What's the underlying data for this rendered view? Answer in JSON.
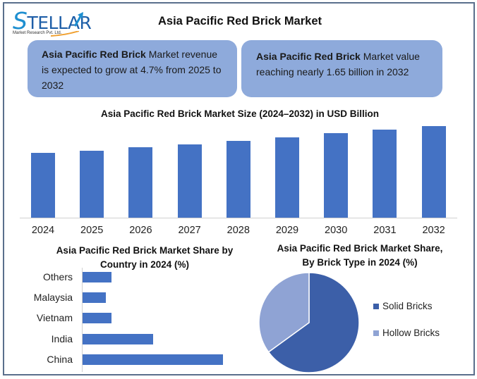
{
  "header": {
    "logo_name": "STELLAR",
    "logo_subtitle": "Market Research Pvt. Ltd.",
    "title": "Asia Pacific Red Brick Market"
  },
  "cards": [
    {
      "bold": "Asia Pacific Red Brick",
      "text": " Market revenue is expected to grow at 4.7% from 2025 to 2032"
    },
    {
      "bold": "Asia Pacific Red Brick",
      "text": " Market value reaching nearly 1.65 billion in 2032"
    }
  ],
  "colors": {
    "bar": "#4472c4",
    "card": "#8eaadb",
    "pie_solid": "#3c5fa8",
    "pie_hollow": "#8fa3d4",
    "frame": "#5a6f8c"
  },
  "chart_data": [
    {
      "type": "bar",
      "title": "Asia Pacific Red Brick Market Size (2024–2032) in USD Billion",
      "categories": [
        "2024",
        "2025",
        "2026",
        "2027",
        "2028",
        "2029",
        "2030",
        "2031",
        "2032"
      ],
      "values": [
        1.17,
        1.21,
        1.27,
        1.32,
        1.39,
        1.45,
        1.52,
        1.59,
        1.65
      ],
      "xlabel": "",
      "ylabel": "USD Billion",
      "ylim": [
        0,
        1.75
      ],
      "grid": false
    },
    {
      "type": "bar",
      "orientation": "horizontal",
      "title": "Asia Pacific Red Brick Market Share by Country in 2024 (%)",
      "categories": [
        "Others",
        "Malaysia",
        "Vietnam",
        "India",
        "China"
      ],
      "values": [
        10,
        8,
        10,
        24,
        48
      ],
      "xlabel": "",
      "ylabel": "",
      "grid": false
    },
    {
      "type": "pie",
      "title": "Asia Pacific Red Brick Market Share, By Brick Type in 2024 (%)",
      "categories": [
        "Solid Bricks",
        "Hollow Bricks"
      ],
      "values": [
        65,
        35
      ],
      "legend_position": "right"
    }
  ]
}
